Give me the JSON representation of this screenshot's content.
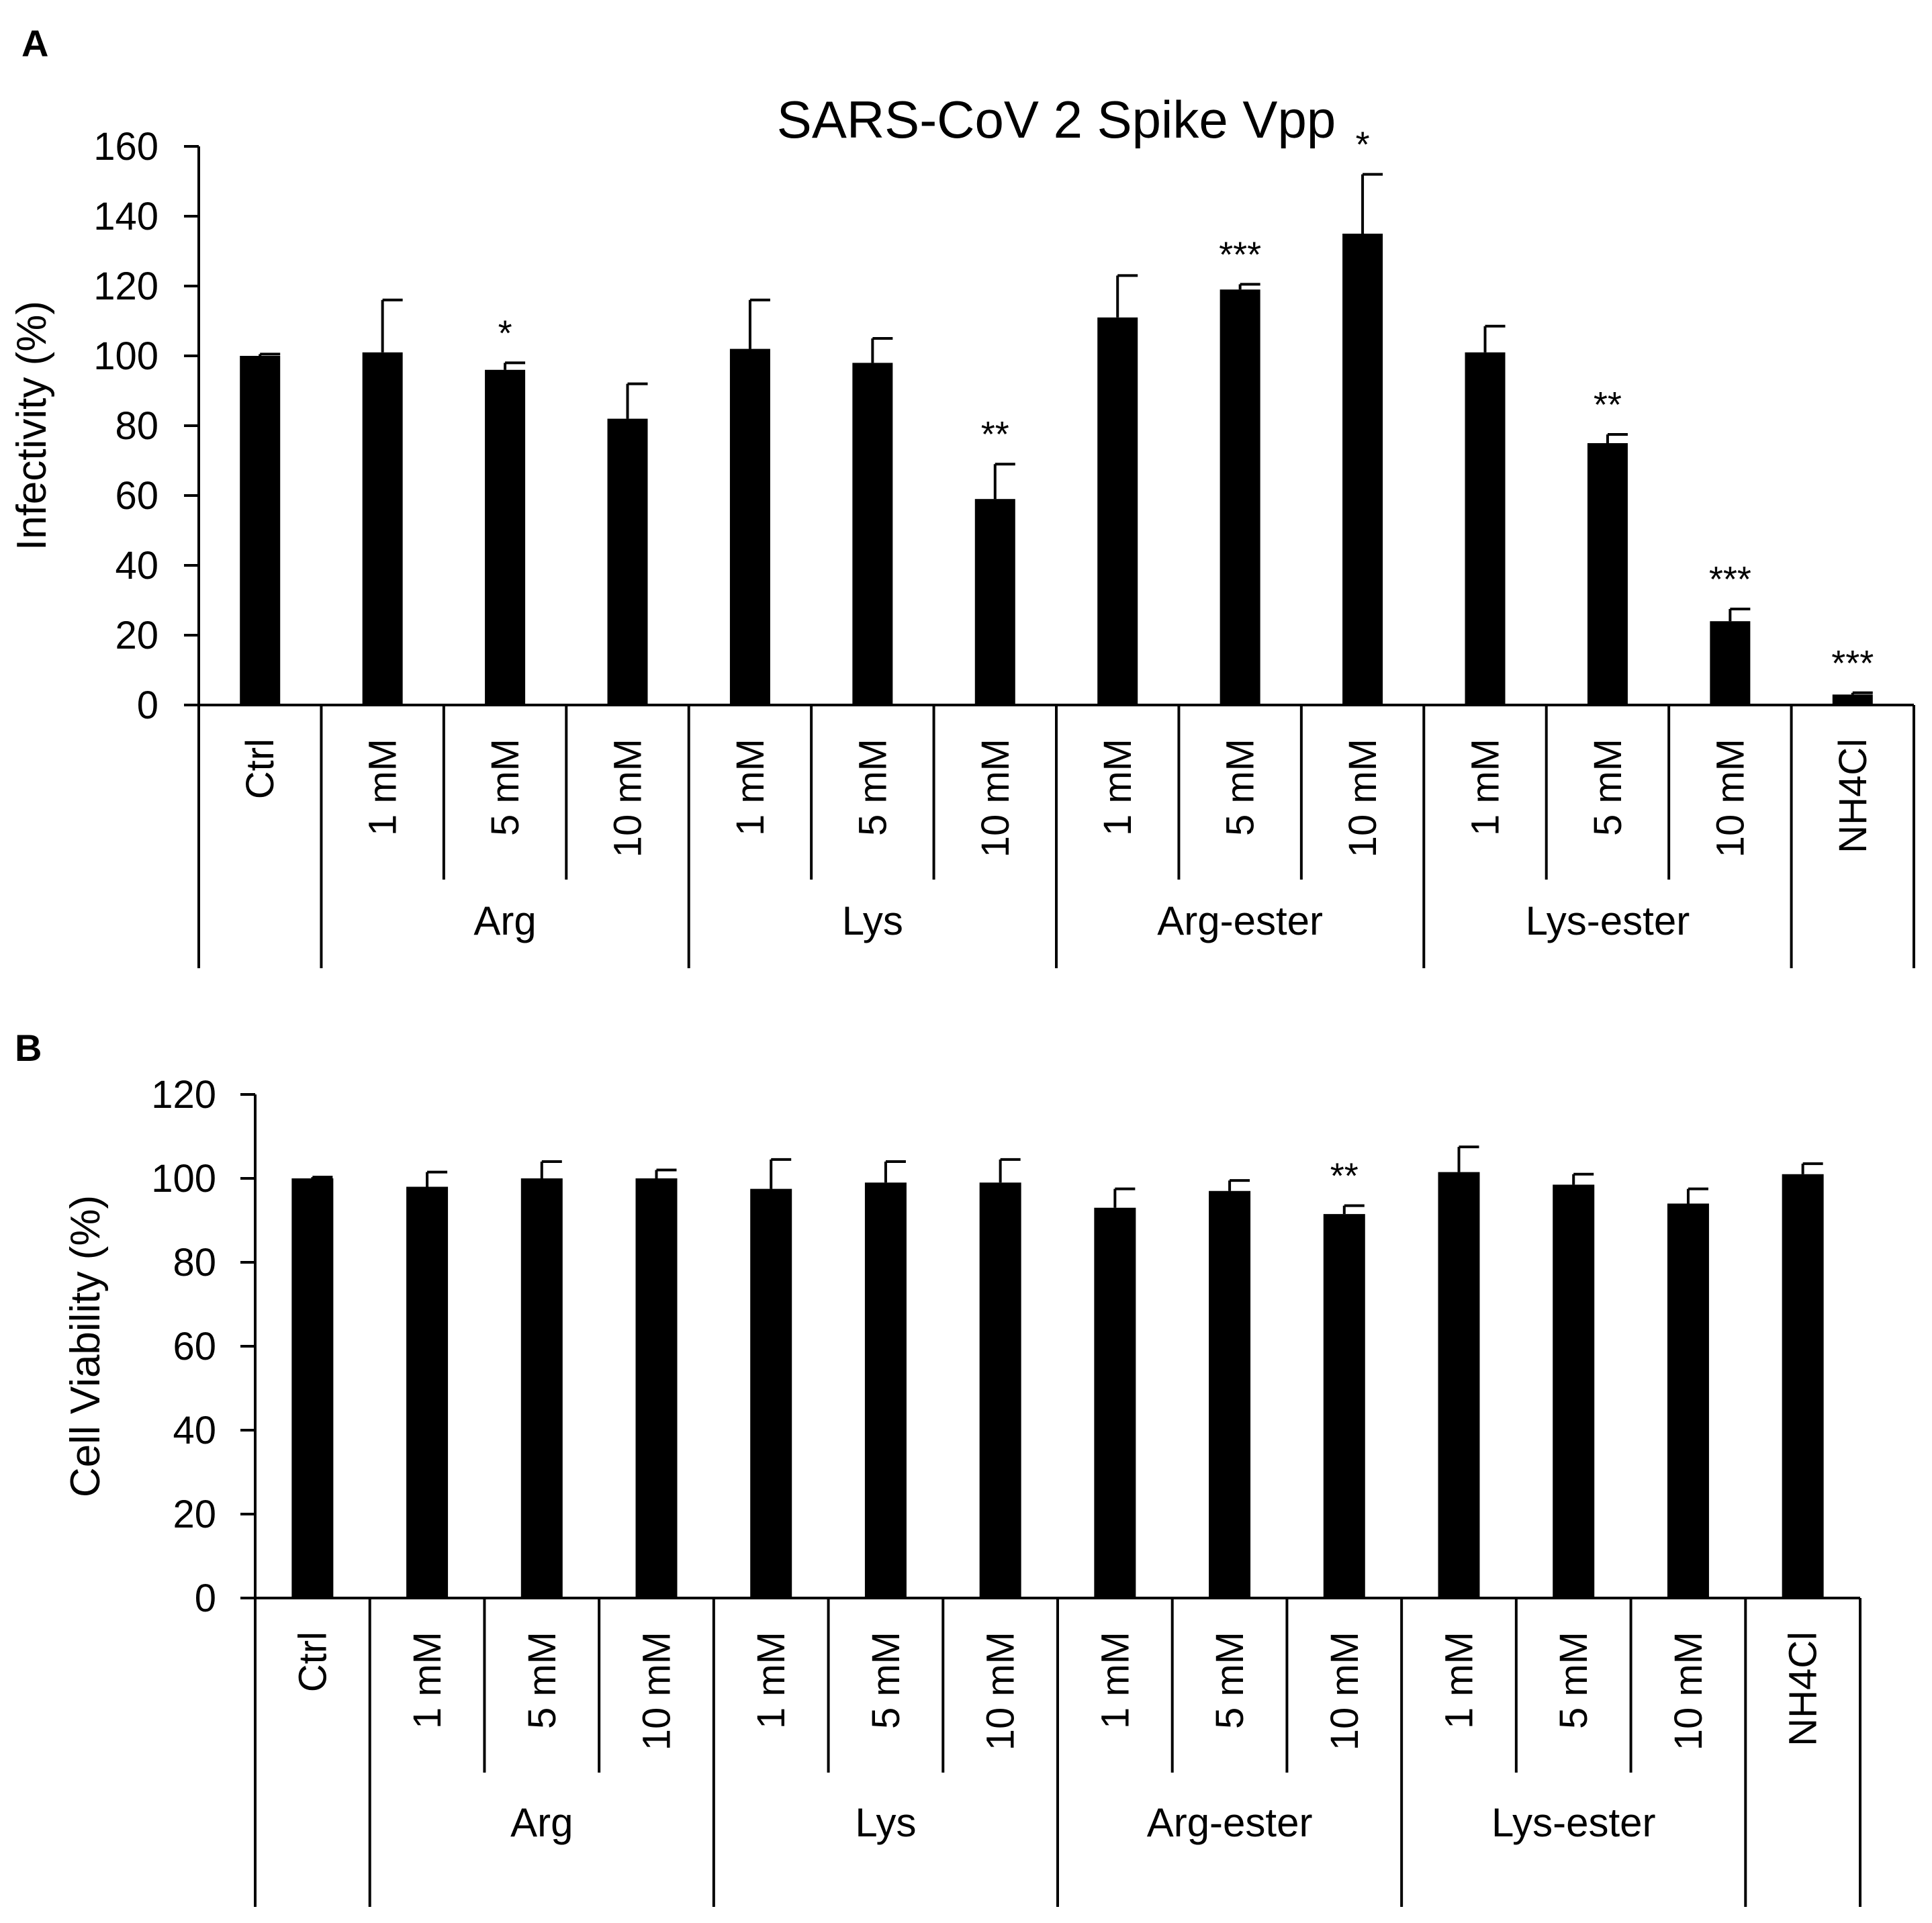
{
  "chart_data": [
    {
      "panel": "A",
      "type": "bar",
      "title": "SARS-CoV 2 Spike Vpp",
      "ylabel": "Infectivity (%)",
      "xlabel": "",
      "ylim": [
        0,
        160
      ],
      "yticks": [
        0,
        20,
        40,
        60,
        80,
        100,
        120,
        140,
        160
      ],
      "categories": [
        "Ctrl",
        "1 mM",
        "5 mM",
        "10 mM",
        "1 mM",
        "5 mM",
        "10 mM",
        "1 mM",
        "5 mM",
        "10 mM",
        "1 mM",
        "5 mM",
        "10 mM",
        "NH4Cl"
      ],
      "groups": [
        {
          "label": "",
          "start": 0,
          "end": 0
        },
        {
          "label": "Arg",
          "start": 1,
          "end": 3
        },
        {
          "label": "Lys",
          "start": 4,
          "end": 6
        },
        {
          "label": "Arg-ester",
          "start": 7,
          "end": 9
        },
        {
          "label": "Lys-ester",
          "start": 10,
          "end": 12
        },
        {
          "label": "",
          "start": 13,
          "end": 13
        }
      ],
      "values": [
        100,
        101,
        96,
        82,
        102,
        98,
        59,
        111,
        119,
        135,
        101,
        75,
        24,
        3
      ],
      "errors": [
        0.5,
        15,
        2,
        10,
        14,
        7,
        10,
        12,
        1.5,
        17,
        7.5,
        2.5,
        3.5,
        0.5
      ],
      "significance": [
        "",
        "",
        "*",
        "",
        "",
        "",
        "**",
        "",
        "***",
        "*",
        "",
        "**",
        "***",
        "***"
      ],
      "grid": false
    },
    {
      "panel": "B",
      "type": "bar",
      "title": "",
      "ylabel": "Cell Viability (%)",
      "xlabel": "",
      "ylim": [
        0,
        120
      ],
      "yticks": [
        0,
        20,
        40,
        60,
        80,
        100,
        120
      ],
      "categories": [
        "Ctrl",
        "1 mM",
        "5 mM",
        "10 mM",
        "1 mM",
        "5 mM",
        "10 mM",
        "1 mM",
        "5 mM",
        "10 mM",
        "1 mM",
        "5 mM",
        "10 mM",
        "NH4Cl"
      ],
      "groups": [
        {
          "label": "",
          "start": 0,
          "end": 0
        },
        {
          "label": "Arg",
          "start": 1,
          "end": 3
        },
        {
          "label": "Lys",
          "start": 4,
          "end": 6
        },
        {
          "label": "Arg-ester",
          "start": 7,
          "end": 9
        },
        {
          "label": "Lys-ester",
          "start": 10,
          "end": 12
        },
        {
          "label": "",
          "start": 13,
          "end": 13
        }
      ],
      "values": [
        100,
        98,
        100,
        100,
        97.5,
        99,
        99,
        93,
        97,
        91.5,
        101.5,
        98.5,
        94,
        101
      ],
      "errors": [
        0.3,
        3.5,
        4,
        2,
        7,
        5,
        5.5,
        4.5,
        2.5,
        2,
        6,
        2.5,
        3.5,
        2.5
      ],
      "significance": [
        "",
        "",
        "",
        "",
        "",
        "",
        "",
        "",
        "",
        "**",
        "",
        "",
        "",
        ""
      ],
      "grid": false
    }
  ]
}
